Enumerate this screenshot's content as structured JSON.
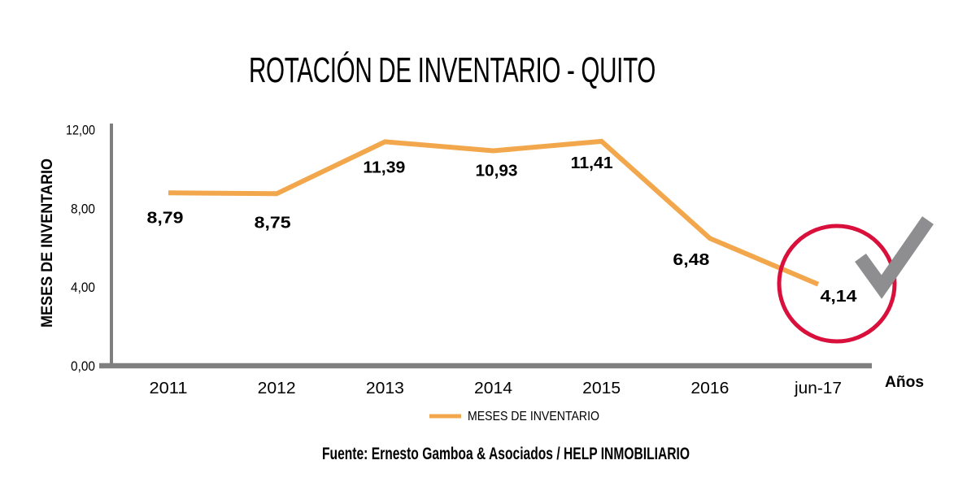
{
  "title": "ROTACIÓN DE INVENTARIO - QUITO",
  "y_axis_title": "MESES DE INVENTARIO",
  "x_axis_title": "Años",
  "legend": {
    "series_label": "MESES DE INVENTARIO"
  },
  "source": "Fuente: Ernesto Gamboa & Asociados / HELP INMOBILIARIO",
  "colors": {
    "series_line": "#F2A74C",
    "highlight_circle": "#D90F3C",
    "checkmark": "#8E8E90",
    "axis": "#7F7F7F",
    "text": "#000000",
    "background": "#FFFFFF"
  },
  "chart_data": {
    "type": "line",
    "title": "ROTACIÓN DE INVENTARIO - QUITO",
    "xlabel": "Años",
    "ylabel": "MESES DE INVENTARIO",
    "categories": [
      "2011",
      "2012",
      "2013",
      "2014",
      "2015",
      "2016",
      "jun-17"
    ],
    "series": [
      {
        "name": "MESES DE INVENTARIO",
        "color": "#F2A74C",
        "values": [
          8.79,
          8.75,
          11.39,
          10.93,
          11.41,
          6.48,
          4.14
        ]
      }
    ],
    "value_labels": [
      "8,79",
      "8,75",
      "11,39",
      "10,93",
      "11,41",
      "6,48",
      "4,14"
    ],
    "y_ticks": [
      {
        "value": 0,
        "label": "0,00"
      },
      {
        "value": 4,
        "label": "4,00"
      },
      {
        "value": 8,
        "label": "8,00"
      },
      {
        "value": 12,
        "label": "12,00"
      }
    ],
    "ylim": [
      0,
      12
    ],
    "grid": false,
    "legend_position": "bottom",
    "annotations": [
      {
        "type": "circle",
        "target_category": "jun-17",
        "target_value": 4.14,
        "color": "#D90F3C"
      },
      {
        "type": "checkmark",
        "near_category": "jun-17",
        "color": "#8E8E90"
      }
    ]
  }
}
